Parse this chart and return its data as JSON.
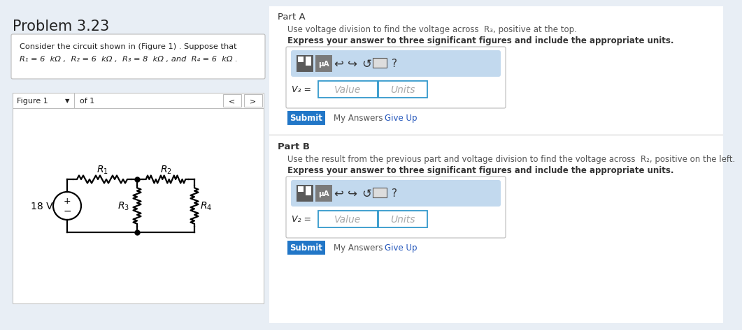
{
  "title": "Problem 3.23",
  "left_bg": "#e8eef5",
  "white": "#ffffff",
  "right_bg": "#ffffff",
  "blue_btn": "#2176c7",
  "blue_link": "#2255bb",
  "dark_text": "#222222",
  "gray_text": "#555555",
  "bold_text": "#333333",
  "problem_line1": "Consider the circuit shown in (Figure 1) . Suppose that",
  "problem_line2_math": "R₁ = 6  kΩ ,  R₂ = 6  kΩ ,  R₃ = 8  kΩ , and  R₄ = 6  kΩ .",
  "figure_label": "Figure 1",
  "of_1": "of 1",
  "voltage": "18 V",
  "partA_title": "Part A",
  "partA_line1": "Use voltage division to find the voltage across  R₃, positive at the top.",
  "partA_line2": "Express your answer to three significant figures and include the appropriate units.",
  "partB_title": "Part B",
  "partB_line1": "Use the result from the previous part and voltage division to find the voltage across  R₂, positive on the left.",
  "partB_line2": "Express your answer to three significant figures and include the appropriate units.",
  "V3_label": "V₃ =",
  "V2_label": "V₂ =",
  "value_placeholder": "Value",
  "units_placeholder": "Units",
  "submit_text": "Submit",
  "my_answers_text": "My Answers",
  "give_up_text": "Give Up",
  "toolbar_bg": "#c2d9ee",
  "icon1_bg": "#6b6b6b",
  "icon2_bg": "#888888",
  "input_border": "#3399cc",
  "divider_color": "#cccccc",
  "border_color": "#bbbbbb"
}
